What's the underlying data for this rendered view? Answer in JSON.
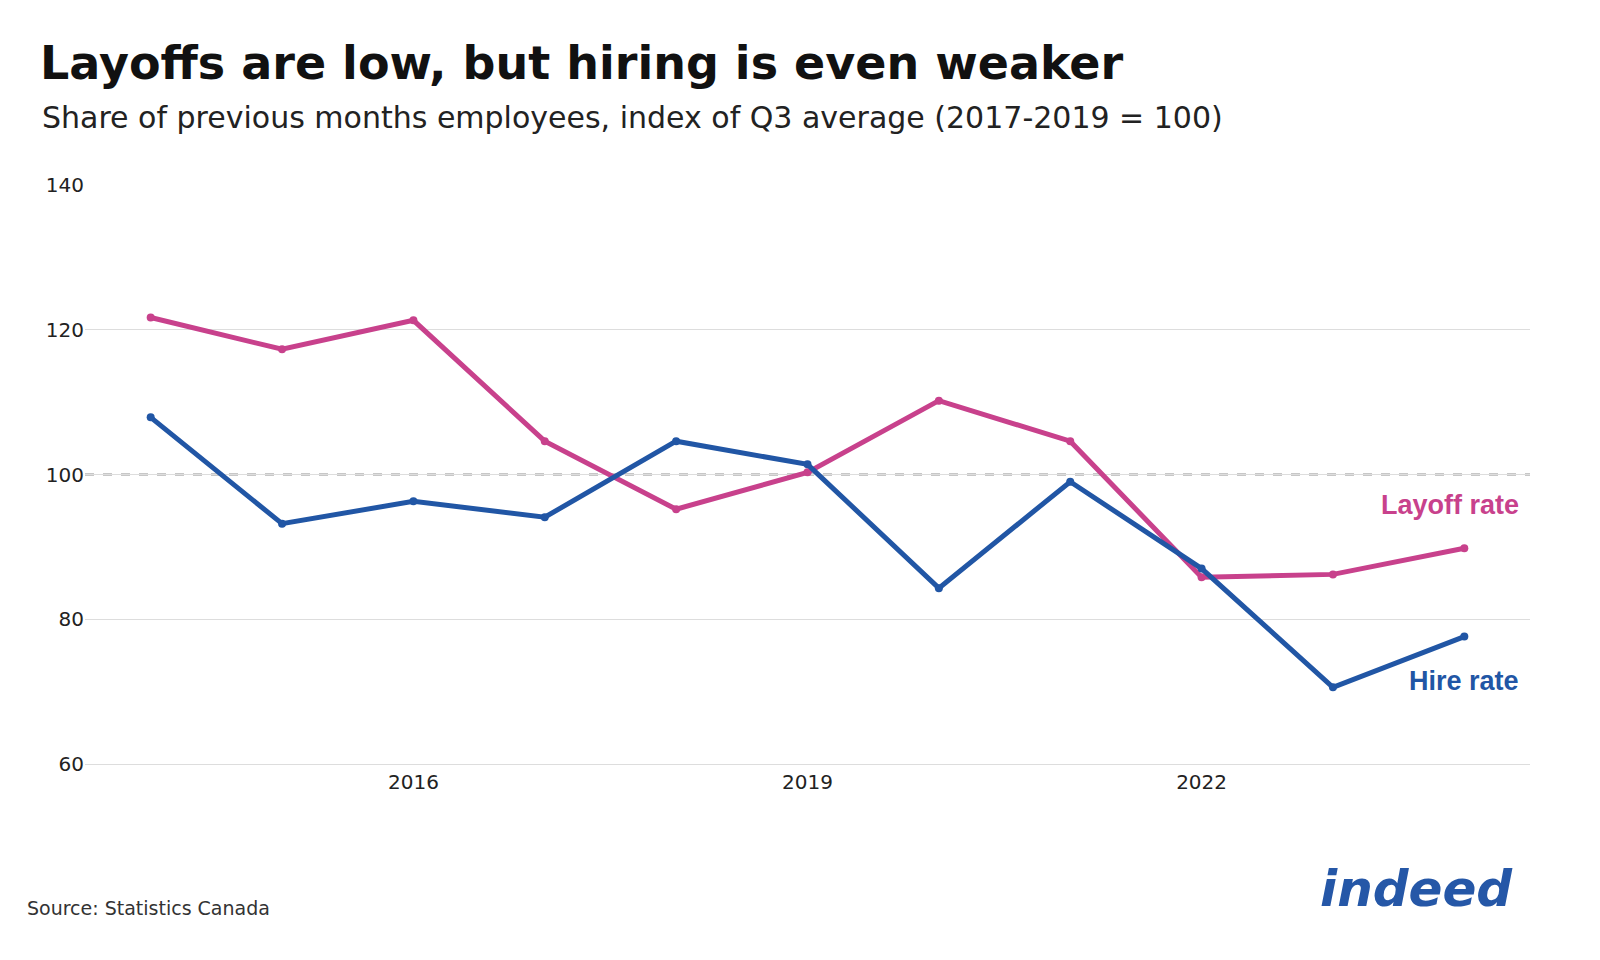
{
  "chart_data": {
    "type": "line",
    "title": "Layoffs are low, but hiring is even weaker",
    "subtitle": "Share of previous months employees, index of Q3 average (2017-2019 = 100)",
    "source": "Source: Statistics Canada",
    "logo": "indeed",
    "x": [
      2014,
      2015,
      2016,
      2017,
      2018,
      2019,
      2020,
      2021,
      2022,
      2023,
      2024
    ],
    "series": [
      {
        "name": "Layoff rate",
        "color": "#c8418c",
        "marker": "circle",
        "values": [
          121.7,
          117.3,
          121.3,
          104.6,
          95.2,
          100.3,
          110.2,
          104.6,
          85.8,
          86.2,
          89.8
        ]
      },
      {
        "name": "Hire rate",
        "color": "#2156a5",
        "marker": "circle",
        "values": [
          107.9,
          93.2,
          96.3,
          94.1,
          104.6,
          101.4,
          84.3,
          99.0,
          87.0,
          70.6,
          77.6
        ]
      }
    ],
    "xlim": [
      2013.5,
      2024.5
    ],
    "xticks": [
      2016,
      2019,
      2022
    ],
    "ylim": [
      60,
      140
    ],
    "yticks": [
      60,
      80,
      100,
      120,
      140
    ],
    "reference_lines": [
      {
        "y": 100,
        "line_style": "dashed"
      }
    ],
    "grid": true
  }
}
